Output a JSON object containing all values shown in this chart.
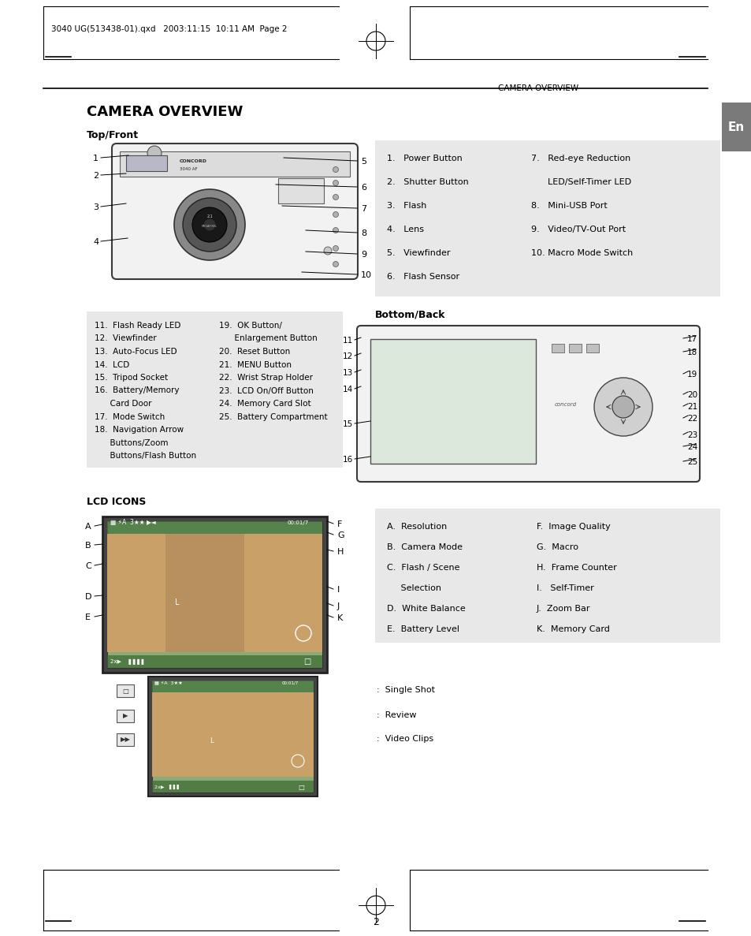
{
  "bg_color": "#ffffff",
  "header_text": "3040 UG(513438-01).qxd   2003:11:15  10:11 AM  Page 2",
  "section_header": "CAMERA OVERVIEW",
  "title": "CAMERA OVERVIEW",
  "subtitle1": "Top/Front",
  "subtitle2": "Bottom/Back",
  "subtitle3": "LCD ICONS",
  "tab_text": "En",
  "top_labels_left": [
    "1",
    "2",
    "3",
    "4"
  ],
  "top_labels_right": [
    "5",
    "6",
    "7",
    "8",
    "9",
    "10"
  ],
  "top_list_col1": [
    "1.   Power Button",
    "2.   Shutter Button",
    "3.   Flash",
    "4.   Lens",
    "5.   Viewfinder",
    "6.   Flash Sensor"
  ],
  "top_list_col2": [
    "7.   Red-eye Reduction",
    "      LED/Self-Timer LED",
    "8.   Mini-USB Port",
    "9.   Video/TV-Out Port",
    "10. Macro Mode Switch",
    ""
  ],
  "bottom_box_col1": [
    "11.  Flash Ready LED",
    "12.  Viewfinder",
    "13.  Auto-Focus LED",
    "14.  LCD",
    "15.  Tripod Socket",
    "16.  Battery/Memory",
    "      Card Door",
    "17.  Mode Switch",
    "18.  Navigation Arrow",
    "      Buttons/Zoom",
    "      Buttons/Flash Button"
  ],
  "bottom_box_col2": [
    "19.  OK Button/",
    "      Enlargement Button",
    "20.  Reset Button",
    "21.  MENU Button",
    "22.  Wrist Strap Holder",
    "23.  LCD On/Off Button",
    "24.  Memory Card Slot",
    "25.  Battery Compartment",
    "",
    "",
    ""
  ],
  "back_labels_left": [
    "11",
    "12",
    "13",
    "14",
    "15",
    "16"
  ],
  "back_labels_right": [
    "17",
    "18",
    "19",
    "20",
    "21",
    "22",
    "23",
    "24",
    "25"
  ],
  "lcd_labels_left": [
    "A",
    "B",
    "C",
    "D",
    "E"
  ],
  "lcd_labels_right": [
    "F",
    "G",
    "H",
    "I",
    "J",
    "K"
  ],
  "lcd_list_col1": [
    "A.  Resolution",
    "B.  Camera Mode",
    "C.  Flash / Scene",
    "     Selection",
    "D.  White Balance",
    "E.  Battery Level"
  ],
  "lcd_list_col2": [
    "F.  Image Quality",
    "G.  Macro",
    "H.  Frame Counter",
    "I.   Self-Timer",
    "J.  Zoom Bar",
    "K.  Memory Card"
  ],
  "mode_lines": [
    ":  Single Shot",
    ":  Review",
    ":  Video Clips"
  ],
  "page_number": "2",
  "gray_box_color": "#e8e8e8",
  "text_color": "#000000"
}
